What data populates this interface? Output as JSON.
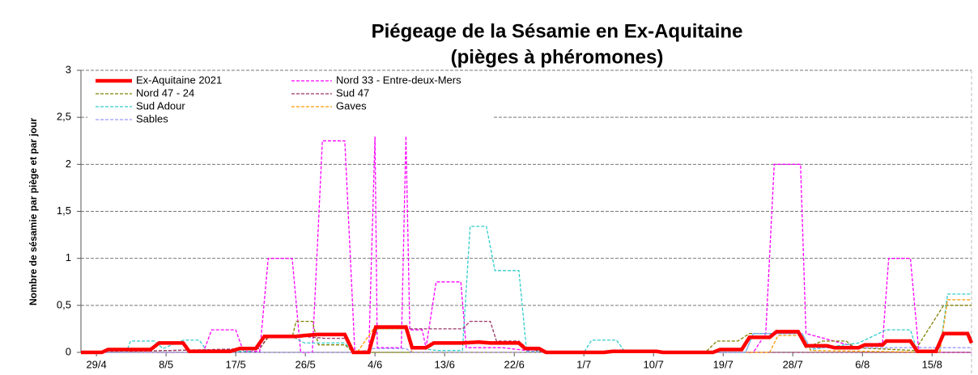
{
  "chart_data": {
    "type": "line",
    "title": "Piégeage de la Sésamie en Ex-Aquitaine",
    "subtitle": "(pièges à phéromones)",
    "y_label": "Nombre de sésamie par piège et par jour",
    "xlim": [
      117,
      232.1
    ],
    "xticks": [
      {
        "value": 119,
        "label": "29/4"
      },
      {
        "value": 128,
        "label": "8/5"
      },
      {
        "value": 137,
        "label": "17/5"
      },
      {
        "value": 146,
        "label": "26/5"
      },
      {
        "value": 155,
        "label": "4/6"
      },
      {
        "value": 164,
        "label": "13/6"
      },
      {
        "value": 173,
        "label": "22/6"
      },
      {
        "value": 182,
        "label": "1/7"
      },
      {
        "value": 191,
        "label": "10/7"
      },
      {
        "value": 200,
        "label": "19/7"
      },
      {
        "value": 209,
        "label": "28/7"
      },
      {
        "value": 218,
        "label": "6/8"
      },
      {
        "value": 227,
        "label": "15/8"
      }
    ],
    "ylim": [
      0,
      3
    ],
    "yticks": [
      0,
      {
        "value": 0.5,
        "label": "0,5"
      },
      1,
      {
        "value": 1.5,
        "label": "1,5"
      },
      2,
      {
        "value": 2.5,
        "label": "2,5"
      },
      3
    ],
    "grid": true,
    "legend": "upper-left",
    "series": [
      {
        "name": "Ex-Aquitaine 2021",
        "color": "#ff0000",
        "line_style": "solid",
        "x": [
          117,
          119.7,
          120.5,
          126.0,
          127.1,
          130.2,
          131.0,
          136.3,
          137.5,
          139.6,
          140.7,
          144.8,
          145.9,
          147.5,
          151.1,
          152.2,
          154.2,
          155.1,
          159.0,
          159.8,
          161.6,
          162.6,
          166.3,
          168.4,
          169.9,
          173.6,
          174.4,
          176.2,
          177.1,
          184.6,
          185.7,
          191.4,
          192.2,
          198.7,
          199.6,
          202.4,
          203.4,
          206.0,
          206.9,
          209.7,
          210.7,
          213.4,
          214.4,
          217.5,
          218.3,
          220.6,
          221.1,
          224.2,
          225.1,
          227.5,
          228.5,
          231.6,
          232.1
        ],
        "values": [
          0,
          0,
          0.03,
          0.03,
          0.1,
          0.1,
          0.01,
          0.01,
          0.04,
          0.04,
          0.17,
          0.17,
          0.18,
          0.19,
          0.19,
          0,
          0,
          0.27,
          0.27,
          0.05,
          0.05,
          0.1,
          0.1,
          0.11,
          0.1,
          0.1,
          0.04,
          0.04,
          0,
          0,
          0.01,
          0.01,
          0,
          0,
          0.03,
          0.03,
          0.16,
          0.16,
          0.22,
          0.22,
          0.07,
          0.07,
          0.05,
          0.05,
          0.08,
          0.08,
          0.12,
          0.12,
          0.01,
          0.01,
          0.2,
          0.2,
          0.1
        ]
      },
      {
        "name": "Nord 33 - Entre-deux-Mers",
        "color": "#ff00ff",
        "line_style": "dashed",
        "x": [
          117,
          132.8,
          133.9,
          137.0,
          138.0,
          140.1,
          141.2,
          144.3,
          145.4,
          146.9,
          148.2,
          151.1,
          152.4,
          154.2,
          155.0,
          155.3,
          158.4,
          159.0,
          159.5,
          161.1,
          161.6,
          162.9,
          166.1,
          166.8,
          171.5,
          174.6,
          176.7,
          203.9,
          205.5,
          206.6,
          210.0,
          210.7,
          217.5,
          218.3,
          220.6,
          221.4,
          224.2,
          225.3,
          232.1
        ],
        "values": [
          0,
          0,
          0.24,
          0.24,
          0.01,
          0.01,
          1,
          1,
          0,
          0,
          2.25,
          2.25,
          0,
          0,
          2.3,
          0.05,
          0.05,
          2.3,
          0.24,
          0.24,
          0.05,
          0.75,
          0.75,
          0.05,
          0.05,
          0.02,
          0,
          0,
          0.2,
          2,
          2,
          0.2,
          0.05,
          0.08,
          0.1,
          1,
          1,
          0,
          0
        ]
      },
      {
        "name": "Nord 47 - 24",
        "color": "#808000",
        "line_style": "dashed",
        "x": [
          117,
          140.1,
          141.2,
          144.3,
          144.8,
          146.9,
          147.7,
          151.1,
          152.2,
          197.7,
          199.2,
          201.9,
          203.4,
          209.7,
          210.7,
          212.8,
          215.9,
          217.0,
          224.8,
          228.5,
          232.1
        ],
        "values": [
          0,
          0.04,
          0.16,
          0.16,
          0.33,
          0.33,
          0.08,
          0.08,
          0,
          0,
          0.12,
          0.12,
          0.2,
          0.2,
          0.05,
          0.12,
          0.12,
          0.05,
          0.02,
          0.5,
          0.5
        ]
      },
      {
        "name": "Sud 47",
        "color": "#993366",
        "line_style": "dashed",
        "x": [
          117,
          140.1,
          141.2,
          144.3,
          148.5,
          151.1,
          152.2,
          154.2,
          155.3,
          160.0,
          163.1,
          166.3,
          167.3,
          169.9,
          170.7,
          173.6,
          174.6,
          176.7,
          232.1
        ],
        "values": [
          0,
          0.04,
          0.17,
          0.18,
          0.15,
          0.15,
          0,
          0,
          0.25,
          0.25,
          0.25,
          0.25,
          0.33,
          0.33,
          0.12,
          0.12,
          0.05,
          0,
          0
        ]
      },
      {
        "name": "Sud Adour",
        "color": "#33cccc",
        "line_style": "dashed",
        "x": [
          117,
          121.8,
          122.9,
          123.4,
          126.5,
          127.6,
          130.2,
          132.3,
          133.3,
          139.1,
          140.7,
          144.3,
          145.9,
          151.1,
          152.2,
          154.2,
          155.3,
          159.0,
          159.8,
          163.1,
          166.3,
          167.3,
          169.4,
          170.5,
          173.6,
          174.6,
          182.0,
          183.0,
          186.2,
          187.2,
          202.9,
          203.9,
          210.2,
          211.3,
          217.5,
          221.1,
          224.2,
          225.1,
          228.0,
          229.0,
          232.1
        ],
        "values": [
          0,
          0,
          0.01,
          0.12,
          0.12,
          0.04,
          0.13,
          0.13,
          0.01,
          0.01,
          0.17,
          0.17,
          0.1,
          0.1,
          0,
          0,
          0.25,
          0.25,
          0.05,
          0.02,
          0.02,
          1.34,
          1.34,
          0.87,
          0.87,
          0.01,
          0,
          0.13,
          0.13,
          0.02,
          0,
          0.2,
          0.2,
          0.03,
          0.1,
          0.24,
          0.24,
          0.01,
          0.01,
          0.62,
          0.62
        ]
      },
      {
        "name": "Gaves",
        "color": "#ff9900",
        "line_style": "dashed",
        "x": [
          117,
          152.7,
          154.8,
          159.0,
          159.8,
          206.0,
          207.1,
          210.2,
          211.3,
          228.0,
          229.0,
          232.1
        ],
        "values": [
          0,
          0,
          0.25,
          0.25,
          0,
          0,
          0.18,
          0.18,
          0.02,
          0,
          0.56,
          0.56
        ]
      },
      {
        "name": "Sables",
        "color": "#9999ff",
        "line_style": "dashed",
        "x": [
          117,
          152.7,
          154.8,
          159.0,
          159.8,
          202.9,
          203.9,
          210.2,
          211.3,
          232.1
        ],
        "values": [
          0,
          0,
          0.04,
          0.04,
          0,
          0,
          0.2,
          0.2,
          0.05,
          0.05
        ]
      }
    ]
  }
}
